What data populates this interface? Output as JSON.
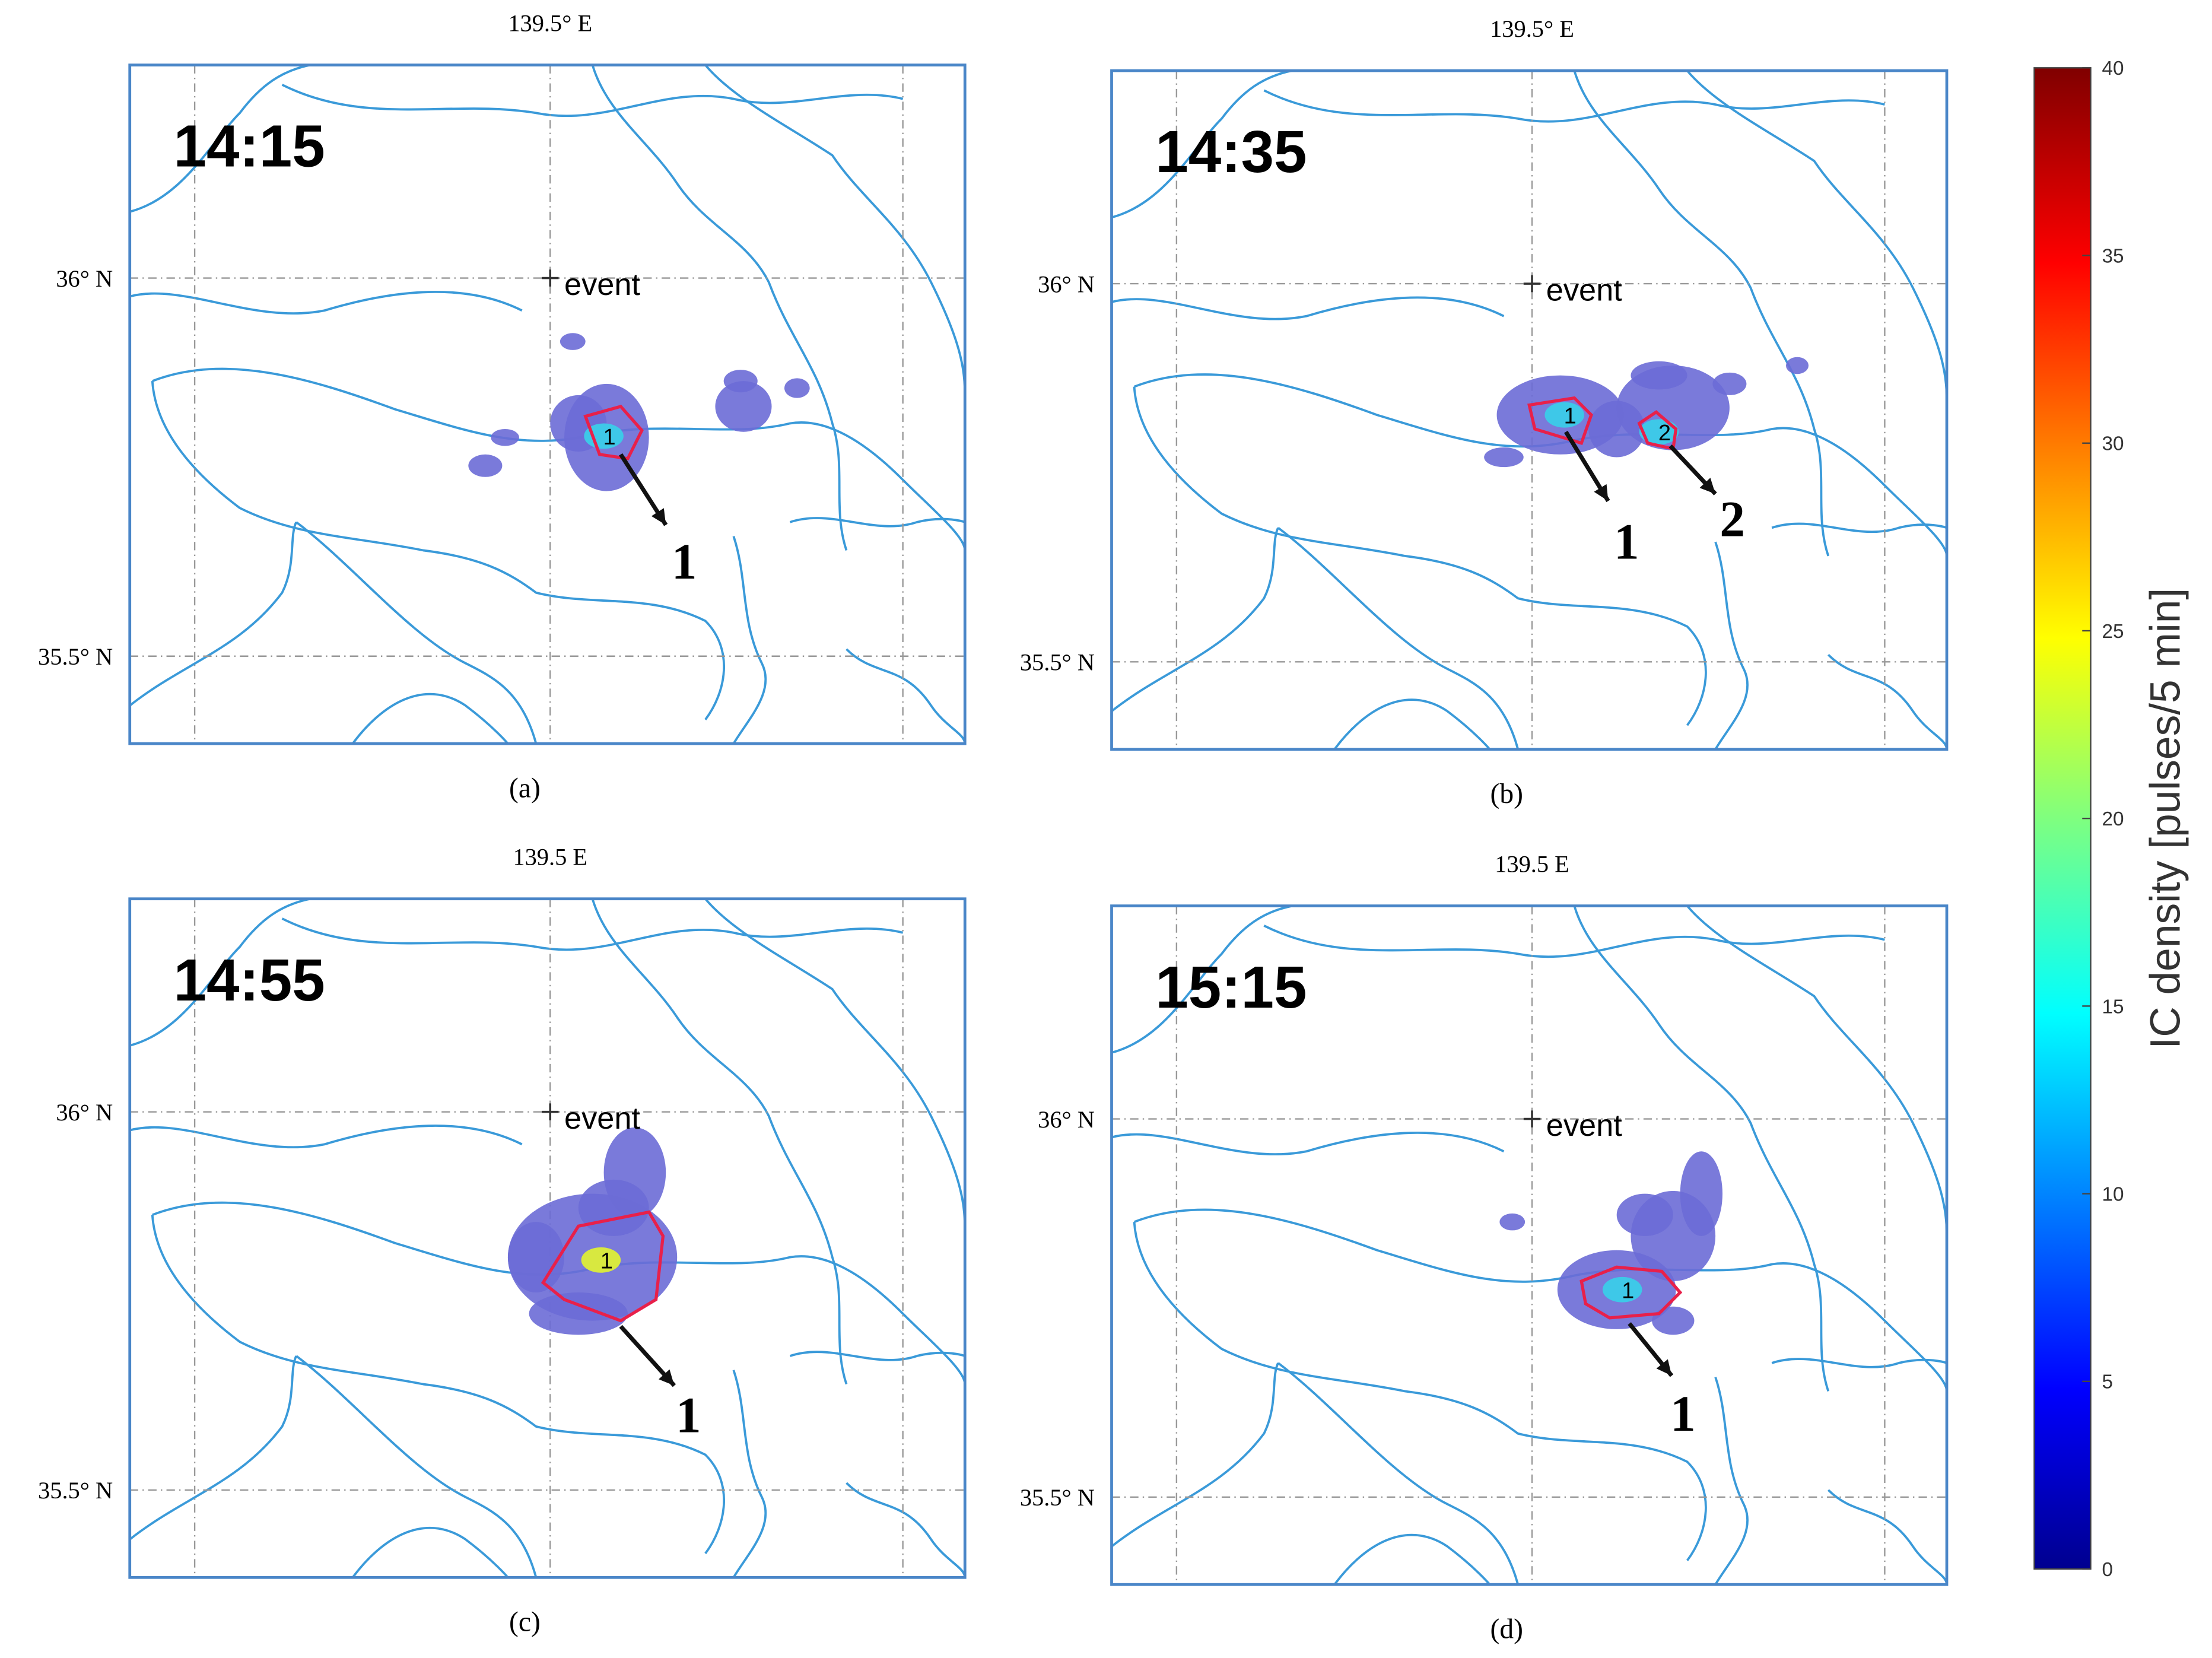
{
  "panels": [
    {
      "time": "14:15",
      "lon_label": "139.5° E",
      "lat_labels": [
        "36° N",
        "35.5° N"
      ],
      "event": "event",
      "cells": [
        "1"
      ],
      "arrows": [
        "1"
      ],
      "caption": "(a)"
    },
    {
      "time": "14:35",
      "lon_label": "139.5° E",
      "lat_labels": [
        "36° N",
        "35.5° N"
      ],
      "event": "event",
      "cells": [
        "1",
        "2"
      ],
      "arrows": [
        "1",
        "2"
      ],
      "caption": "(b)"
    },
    {
      "time": "14:55",
      "lon_label": "139.5 E",
      "lat_labels": [
        "36° N",
        "35.5° N"
      ],
      "event": "event",
      "cells": [
        "1"
      ],
      "arrows": [
        "1"
      ],
      "caption": "(c)"
    },
    {
      "time": "15:15",
      "lon_label": "139.5 E",
      "lat_labels": [
        "36° N",
        "35.5° N"
      ],
      "event": "event",
      "cells": [
        "1"
      ],
      "arrows": [
        "1"
      ],
      "caption": "(d)"
    }
  ],
  "colorbar": {
    "label": "IC density [pulses/5 min]",
    "lim": [
      0,
      40
    ],
    "ticks": [
      0,
      5,
      10,
      15,
      20,
      25,
      30,
      35,
      40
    ]
  }
}
